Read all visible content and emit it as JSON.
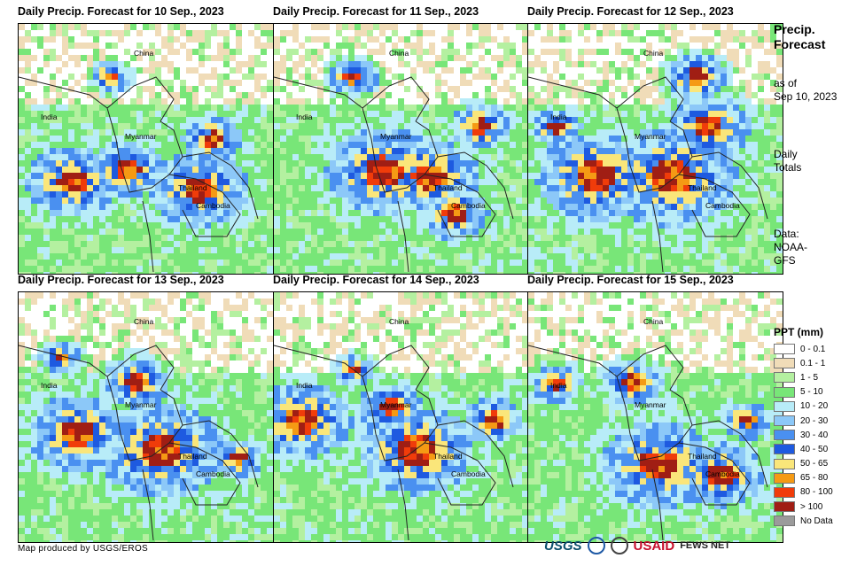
{
  "panels": [
    {
      "title": "Daily Precip. Forecast for 10 Sep., 2023",
      "seed": 1,
      "hot": [
        [
          0.42,
          0.57,
          0.22
        ],
        [
          0.2,
          0.62,
          0.28
        ],
        [
          0.7,
          0.65,
          0.3
        ],
        [
          0.35,
          0.2,
          0.12
        ],
        [
          0.75,
          0.45,
          0.18
        ]
      ]
    },
    {
      "title": "Daily Precip. Forecast for 11 Sep., 2023",
      "seed": 2,
      "hot": [
        [
          0.42,
          0.58,
          0.35
        ],
        [
          0.6,
          0.6,
          0.3
        ],
        [
          0.3,
          0.2,
          0.15
        ],
        [
          0.8,
          0.4,
          0.18
        ],
        [
          0.7,
          0.75,
          0.2
        ]
      ]
    },
    {
      "title": "Daily Precip. Forecast for 12 Sep., 2023",
      "seed": 3,
      "hot": [
        [
          0.55,
          0.6,
          0.4
        ],
        [
          0.25,
          0.6,
          0.35
        ],
        [
          0.7,
          0.4,
          0.25
        ],
        [
          0.65,
          0.2,
          0.18
        ],
        [
          0.1,
          0.4,
          0.15
        ]
      ]
    },
    {
      "title": "Daily Precip. Forecast for 13 Sep., 2023",
      "seed": 4,
      "hot": [
        [
          0.22,
          0.55,
          0.3
        ],
        [
          0.55,
          0.62,
          0.38
        ],
        [
          0.45,
          0.35,
          0.2
        ],
        [
          0.85,
          0.65,
          0.15
        ],
        [
          0.15,
          0.25,
          0.12
        ]
      ]
    },
    {
      "title": "Daily Precip. Forecast for 14 Sep., 2023",
      "seed": 5,
      "hot": [
        [
          0.55,
          0.62,
          0.35
        ],
        [
          0.1,
          0.5,
          0.3
        ],
        [
          0.45,
          0.45,
          0.2
        ],
        [
          0.85,
          0.5,
          0.18
        ],
        [
          0.3,
          0.3,
          0.12
        ]
      ]
    },
    {
      "title": "Daily Precip. Forecast for 15 Sep., 2023",
      "seed": 6,
      "hot": [
        [
          0.5,
          0.68,
          0.35
        ],
        [
          0.75,
          0.72,
          0.25
        ],
        [
          0.1,
          0.35,
          0.15
        ],
        [
          0.4,
          0.35,
          0.18
        ],
        [
          0.85,
          0.5,
          0.15
        ]
      ]
    }
  ],
  "places": {
    "china": "China",
    "india": "India",
    "myanmar": "Myanmar",
    "thailand": "Thailand",
    "cambodia": "Cambodia"
  },
  "sidebar": {
    "title_line1": "Precip.",
    "title_line2": "Forecast",
    "asof_line1": "as of",
    "asof_line2": "Sep 10, 2023",
    "daily_line1": "Daily",
    "daily_line2": "Totals",
    "data_line1": "Data:",
    "data_line2": "NOAA-",
    "data_line3": "GFS"
  },
  "legend": {
    "title": "PPT (mm)",
    "items": [
      {
        "label": "0 - 0.1",
        "color": "#ffffff"
      },
      {
        "label": "0.1 - 1",
        "color": "#f0dcb8"
      },
      {
        "label": "1 - 5",
        "color": "#b4f0a0"
      },
      {
        "label": "5 - 10",
        "color": "#78e678"
      },
      {
        "label": "10 - 20",
        "color": "#b8ecf8"
      },
      {
        "label": "20 - 30",
        "color": "#8cc8f8"
      },
      {
        "label": "30 - 40",
        "color": "#4a90f0"
      },
      {
        "label": "40 - 50",
        "color": "#1e5ae0"
      },
      {
        "label": "50 - 65",
        "color": "#fae67a"
      },
      {
        "label": "65 - 80",
        "color": "#f59a14"
      },
      {
        "label": "80 - 100",
        "color": "#f03c0a"
      },
      {
        "label": "> 100",
        "color": "#a01e14"
      },
      {
        "label": "No Data",
        "color": "#9b9b9b"
      }
    ]
  },
  "credit": "Map produced by USGS/EROS",
  "logos": {
    "usgs": "USGS",
    "usaid": "USAID",
    "fews": "FEWS NET"
  }
}
